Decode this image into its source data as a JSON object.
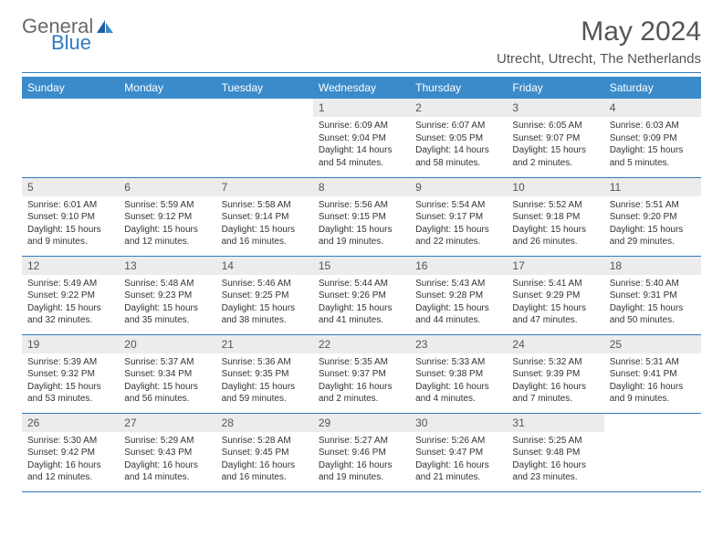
{
  "colors": {
    "header_bg": "#3b8bca",
    "rule": "#2f7bbf",
    "daynum_bg": "#ececec",
    "text": "#333333",
    "title": "#555555",
    "logo_gray": "#6a6a6a",
    "logo_blue": "#2f7bbf"
  },
  "logo": {
    "top": "General",
    "bottom": "Blue"
  },
  "title": "May 2024",
  "location": "Utrecht, Utrecht, The Netherlands",
  "weekdays": [
    "Sunday",
    "Monday",
    "Tuesday",
    "Wednesday",
    "Thursday",
    "Friday",
    "Saturday"
  ],
  "fonts": {
    "title_size": 30,
    "location_size": 15,
    "header_size": 12,
    "daynum_size": 12,
    "body_size": 10
  },
  "cells": [
    [
      {
        "n": "",
        "sr": "",
        "ss": "",
        "dl": ""
      },
      {
        "n": "",
        "sr": "",
        "ss": "",
        "dl": ""
      },
      {
        "n": "",
        "sr": "",
        "ss": "",
        "dl": ""
      },
      {
        "n": "1",
        "sr": "Sunrise: 6:09 AM",
        "ss": "Sunset: 9:04 PM",
        "dl": "Daylight: 14 hours and 54 minutes."
      },
      {
        "n": "2",
        "sr": "Sunrise: 6:07 AM",
        "ss": "Sunset: 9:05 PM",
        "dl": "Daylight: 14 hours and 58 minutes."
      },
      {
        "n": "3",
        "sr": "Sunrise: 6:05 AM",
        "ss": "Sunset: 9:07 PM",
        "dl": "Daylight: 15 hours and 2 minutes."
      },
      {
        "n": "4",
        "sr": "Sunrise: 6:03 AM",
        "ss": "Sunset: 9:09 PM",
        "dl": "Daylight: 15 hours and 5 minutes."
      }
    ],
    [
      {
        "n": "5",
        "sr": "Sunrise: 6:01 AM",
        "ss": "Sunset: 9:10 PM",
        "dl": "Daylight: 15 hours and 9 minutes."
      },
      {
        "n": "6",
        "sr": "Sunrise: 5:59 AM",
        "ss": "Sunset: 9:12 PM",
        "dl": "Daylight: 15 hours and 12 minutes."
      },
      {
        "n": "7",
        "sr": "Sunrise: 5:58 AM",
        "ss": "Sunset: 9:14 PM",
        "dl": "Daylight: 15 hours and 16 minutes."
      },
      {
        "n": "8",
        "sr": "Sunrise: 5:56 AM",
        "ss": "Sunset: 9:15 PM",
        "dl": "Daylight: 15 hours and 19 minutes."
      },
      {
        "n": "9",
        "sr": "Sunrise: 5:54 AM",
        "ss": "Sunset: 9:17 PM",
        "dl": "Daylight: 15 hours and 22 minutes."
      },
      {
        "n": "10",
        "sr": "Sunrise: 5:52 AM",
        "ss": "Sunset: 9:18 PM",
        "dl": "Daylight: 15 hours and 26 minutes."
      },
      {
        "n": "11",
        "sr": "Sunrise: 5:51 AM",
        "ss": "Sunset: 9:20 PM",
        "dl": "Daylight: 15 hours and 29 minutes."
      }
    ],
    [
      {
        "n": "12",
        "sr": "Sunrise: 5:49 AM",
        "ss": "Sunset: 9:22 PM",
        "dl": "Daylight: 15 hours and 32 minutes."
      },
      {
        "n": "13",
        "sr": "Sunrise: 5:48 AM",
        "ss": "Sunset: 9:23 PM",
        "dl": "Daylight: 15 hours and 35 minutes."
      },
      {
        "n": "14",
        "sr": "Sunrise: 5:46 AM",
        "ss": "Sunset: 9:25 PM",
        "dl": "Daylight: 15 hours and 38 minutes."
      },
      {
        "n": "15",
        "sr": "Sunrise: 5:44 AM",
        "ss": "Sunset: 9:26 PM",
        "dl": "Daylight: 15 hours and 41 minutes."
      },
      {
        "n": "16",
        "sr": "Sunrise: 5:43 AM",
        "ss": "Sunset: 9:28 PM",
        "dl": "Daylight: 15 hours and 44 minutes."
      },
      {
        "n": "17",
        "sr": "Sunrise: 5:41 AM",
        "ss": "Sunset: 9:29 PM",
        "dl": "Daylight: 15 hours and 47 minutes."
      },
      {
        "n": "18",
        "sr": "Sunrise: 5:40 AM",
        "ss": "Sunset: 9:31 PM",
        "dl": "Daylight: 15 hours and 50 minutes."
      }
    ],
    [
      {
        "n": "19",
        "sr": "Sunrise: 5:39 AM",
        "ss": "Sunset: 9:32 PM",
        "dl": "Daylight: 15 hours and 53 minutes."
      },
      {
        "n": "20",
        "sr": "Sunrise: 5:37 AM",
        "ss": "Sunset: 9:34 PM",
        "dl": "Daylight: 15 hours and 56 minutes."
      },
      {
        "n": "21",
        "sr": "Sunrise: 5:36 AM",
        "ss": "Sunset: 9:35 PM",
        "dl": "Daylight: 15 hours and 59 minutes."
      },
      {
        "n": "22",
        "sr": "Sunrise: 5:35 AM",
        "ss": "Sunset: 9:37 PM",
        "dl": "Daylight: 16 hours and 2 minutes."
      },
      {
        "n": "23",
        "sr": "Sunrise: 5:33 AM",
        "ss": "Sunset: 9:38 PM",
        "dl": "Daylight: 16 hours and 4 minutes."
      },
      {
        "n": "24",
        "sr": "Sunrise: 5:32 AM",
        "ss": "Sunset: 9:39 PM",
        "dl": "Daylight: 16 hours and 7 minutes."
      },
      {
        "n": "25",
        "sr": "Sunrise: 5:31 AM",
        "ss": "Sunset: 9:41 PM",
        "dl": "Daylight: 16 hours and 9 minutes."
      }
    ],
    [
      {
        "n": "26",
        "sr": "Sunrise: 5:30 AM",
        "ss": "Sunset: 9:42 PM",
        "dl": "Daylight: 16 hours and 12 minutes."
      },
      {
        "n": "27",
        "sr": "Sunrise: 5:29 AM",
        "ss": "Sunset: 9:43 PM",
        "dl": "Daylight: 16 hours and 14 minutes."
      },
      {
        "n": "28",
        "sr": "Sunrise: 5:28 AM",
        "ss": "Sunset: 9:45 PM",
        "dl": "Daylight: 16 hours and 16 minutes."
      },
      {
        "n": "29",
        "sr": "Sunrise: 5:27 AM",
        "ss": "Sunset: 9:46 PM",
        "dl": "Daylight: 16 hours and 19 minutes."
      },
      {
        "n": "30",
        "sr": "Sunrise: 5:26 AM",
        "ss": "Sunset: 9:47 PM",
        "dl": "Daylight: 16 hours and 21 minutes."
      },
      {
        "n": "31",
        "sr": "Sunrise: 5:25 AM",
        "ss": "Sunset: 9:48 PM",
        "dl": "Daylight: 16 hours and 23 minutes."
      },
      {
        "n": "",
        "sr": "",
        "ss": "",
        "dl": ""
      }
    ]
  ]
}
